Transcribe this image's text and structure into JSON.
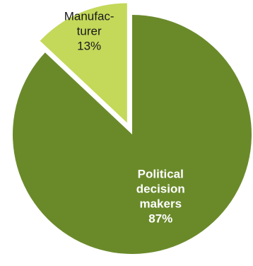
{
  "chart_data": {
    "type": "pie",
    "slices": [
      {
        "name_lines": [
          "Political",
          "decision",
          "makers"
        ],
        "value_label": "87%",
        "value": 87,
        "color": "#6a8a2a",
        "label_color": "#ffffff",
        "label_bold": true,
        "exploded": false
      },
      {
        "name_lines": [
          "Manufac-",
          "turer"
        ],
        "value_label": "13%",
        "value": 13,
        "color": "#c4d85a",
        "label_color": "#1a1a1a",
        "label_bold": false,
        "exploded": true
      }
    ],
    "start_angle_deg": 0,
    "direction": "clockwise",
    "legend": "none"
  }
}
